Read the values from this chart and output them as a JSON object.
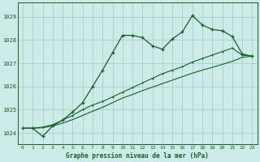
{
  "title": "Graphe pression niveau de la mer (hPa)",
  "bg_color": "#cceae7",
  "grid_color": "#aad4d0",
  "line_color": "#1a5c28",
  "xlim": [
    -0.5,
    23.5
  ],
  "ylim": [
    1023.5,
    1029.6
  ],
  "yticks": [
    1024,
    1025,
    1026,
    1027,
    1028,
    1029
  ],
  "xticks": [
    0,
    1,
    2,
    3,
    4,
    5,
    6,
    7,
    8,
    9,
    10,
    11,
    12,
    13,
    14,
    15,
    16,
    17,
    18,
    19,
    20,
    21,
    22,
    23
  ],
  "series0": [
    1024.2,
    1024.2,
    1023.85,
    1024.3,
    1024.55,
    1024.9,
    1025.3,
    1026.0,
    1026.7,
    1027.45,
    1028.2,
    1028.2,
    1028.1,
    1027.75,
    1027.6,
    1028.05,
    1028.35,
    1029.05,
    1028.65,
    1028.45,
    1028.4,
    1028.15,
    1027.4,
    1027.3
  ],
  "series1": [
    1024.2,
    1024.2,
    1024.25,
    1024.35,
    1024.55,
    1024.75,
    1025.0,
    1025.2,
    1025.35,
    1025.55,
    1025.75,
    1025.95,
    1026.15,
    1026.35,
    1026.55,
    1026.7,
    1026.85,
    1027.05,
    1027.2,
    1027.35,
    1027.5,
    1027.65,
    1027.35,
    1027.3
  ],
  "series2": [
    1024.2,
    1024.2,
    1024.22,
    1024.3,
    1024.42,
    1024.57,
    1024.75,
    1024.93,
    1025.1,
    1025.3,
    1025.5,
    1025.65,
    1025.82,
    1025.97,
    1026.12,
    1026.27,
    1026.42,
    1026.57,
    1026.7,
    1026.82,
    1026.95,
    1027.08,
    1027.25,
    1027.3
  ]
}
